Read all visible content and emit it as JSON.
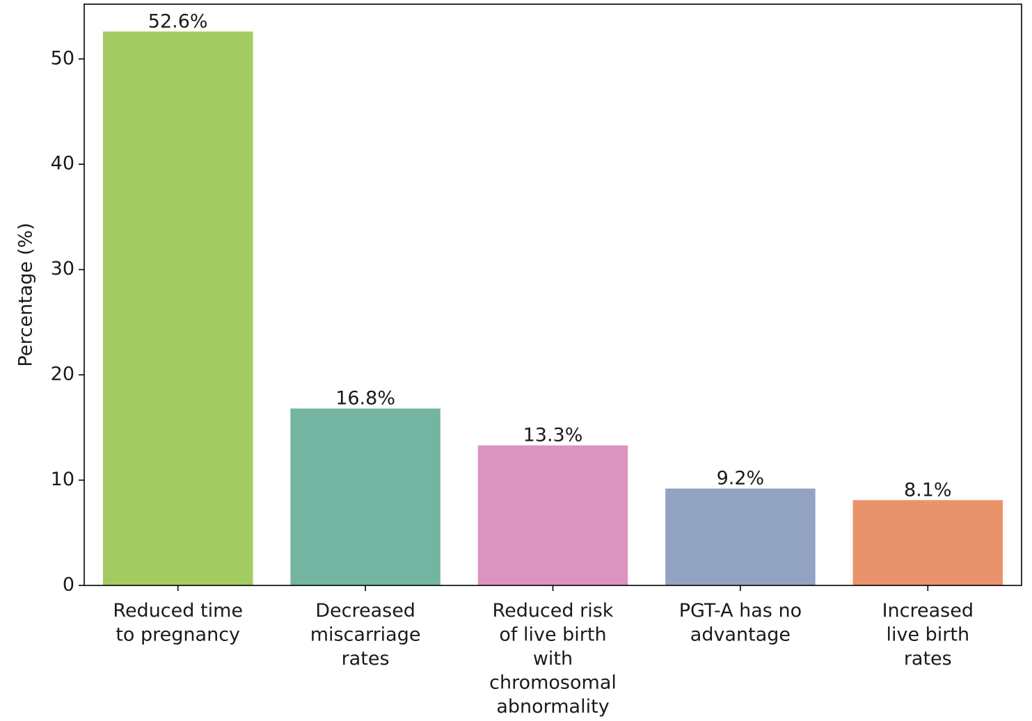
{
  "chart_data": {
    "type": "bar",
    "title": "",
    "xlabel": "",
    "ylabel": "Percentage (%)",
    "ylim": [
      0,
      55.2
    ],
    "yticks": [
      0,
      10,
      20,
      30,
      40,
      50
    ],
    "grid": false,
    "categories": [
      [
        "Reduced time",
        "to pregnancy"
      ],
      [
        "Decreased",
        "miscarriage",
        "rates"
      ],
      [
        "Reduced risk",
        "of live birth",
        "with",
        "chromosomal",
        "abnormality"
      ],
      [
        "PGT-A has no",
        "advantage"
      ],
      [
        "Increased",
        "live birth",
        "rates"
      ]
    ],
    "values": [
      52.6,
      16.8,
      13.3,
      9.2,
      8.1
    ],
    "value_labels": [
      "52.6%",
      "16.8%",
      "13.3%",
      "9.2%",
      "8.1%"
    ],
    "colors": [
      "#a2cb62",
      "#73b5a0",
      "#db94bf",
      "#93a4c3",
      "#e9936c"
    ]
  }
}
